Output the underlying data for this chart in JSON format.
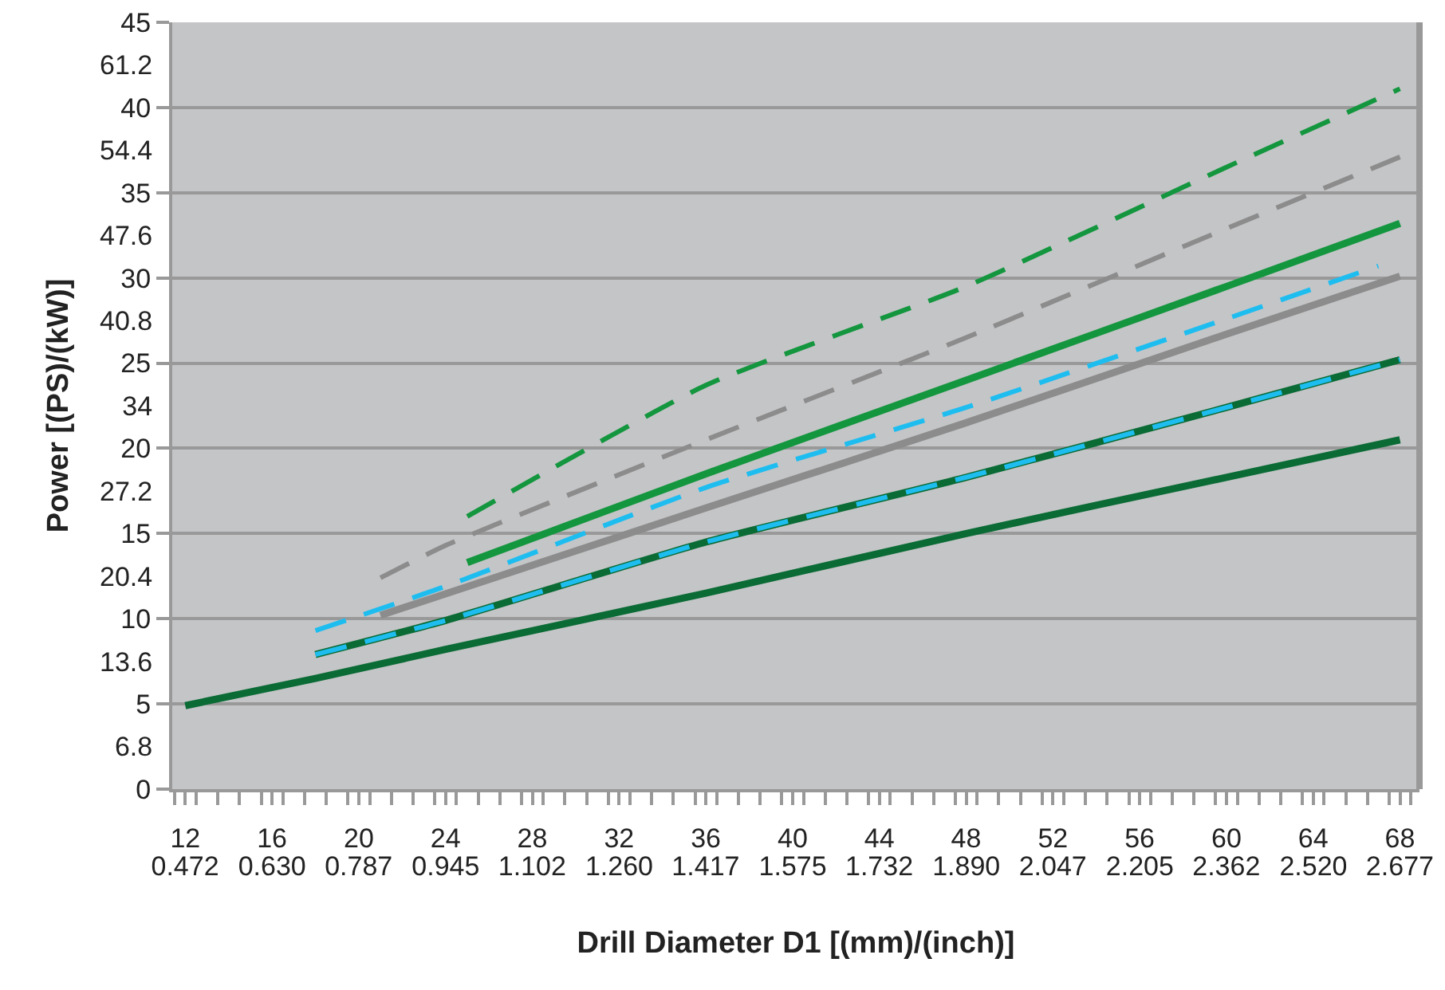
{
  "chart_data": {
    "type": "line",
    "xlabel": "Drill Diameter D1 [(mm)/(inch)]",
    "y2label": "Power [(PS)/(kW)]",
    "xlim": [
      11.4,
      68.9
    ],
    "xticks": [
      12,
      16,
      20,
      24,
      28,
      32,
      36,
      40,
      44,
      48,
      52,
      56,
      60,
      64,
      68,
      {
        "value": 11.5,
        "label": null
      },
      {
        "value": 12.5,
        "label": null
      },
      {
        "value": 13.5,
        "label": null
      },
      {
        "value": 14.5,
        "label": null
      },
      {
        "value": 15.5,
        "label": null
      },
      {
        "value": 16.5,
        "label": null
      },
      {
        "value": 17.5,
        "label": null
      },
      {
        "value": 18.5,
        "label": null
      },
      {
        "value": 19.5,
        "label": null
      },
      {
        "value": 20.5,
        "label": null
      },
      {
        "value": 21.5,
        "label": null
      },
      {
        "value": 22.5,
        "label": null
      },
      {
        "value": 23.5,
        "label": null
      },
      {
        "value": 24.5,
        "label": null
      },
      {
        "value": 25.5,
        "label": null
      },
      {
        "value": 26.5,
        "label": null
      },
      {
        "value": 27.5,
        "label": null
      },
      {
        "value": 28.5,
        "label": null
      },
      {
        "value": 29.5,
        "label": null
      },
      {
        "value": 30.5,
        "label": null
      },
      {
        "value": 31.5,
        "label": null
      },
      {
        "value": 32.5,
        "label": null
      },
      {
        "value": 33.5,
        "label": null
      },
      {
        "value": 34.5,
        "label": null
      },
      {
        "value": 35.5,
        "label": null
      },
      {
        "value": 36.5,
        "label": null
      },
      {
        "value": 37.5,
        "label": null
      },
      {
        "value": 38.5,
        "label": null
      },
      {
        "value": 39.5,
        "label": null
      },
      {
        "value": 40.5,
        "label": null
      },
      {
        "value": 41.5,
        "label": null
      },
      {
        "value": 42.5,
        "label": null
      },
      {
        "value": 43.5,
        "label": null
      },
      {
        "value": 44.5,
        "label": null
      },
      {
        "value": 45.5,
        "label": null
      },
      {
        "value": 46.5,
        "label": null
      },
      {
        "value": 47.5,
        "label": null
      },
      {
        "value": 48.5,
        "label": null
      },
      {
        "value": 49.5,
        "label": null
      },
      {
        "value": 50.5,
        "label": null
      },
      {
        "value": 51.5,
        "label": null
      },
      {
        "value": 52.5,
        "label": null
      },
      {
        "value": 53.5,
        "label": null
      },
      {
        "value": 54.5,
        "label": null
      },
      {
        "value": 55.5,
        "label": null
      },
      {
        "value": 56.5,
        "label": null
      },
      {
        "value": 57.5,
        "label": null
      },
      {
        "value": 58.5,
        "label": null
      },
      {
        "value": 59.5,
        "label": null
      },
      {
        "value": 60.5,
        "label": null
      },
      {
        "value": 61.5,
        "label": null
      },
      {
        "value": 62.5,
        "label": null
      },
      {
        "value": 63.5,
        "label": null
      },
      {
        "value": 64.5,
        "label": null
      },
      {
        "value": 65.5,
        "label": null
      },
      {
        "value": 66.5,
        "label": null
      },
      {
        "value": 67.5,
        "label": null
      },
      {
        "value": 68.5,
        "label": null
      }
    ],
    "x2lim": [
      0.4488,
      2.7126
    ],
    "x2ticks": [
      {
        "value": 0.472,
        "label": "0.472"
      },
      {
        "value": 0.63,
        "label": "0.630"
      },
      0.787,
      0.945,
      1.102,
      {
        "value": 1.26,
        "label": "1.260"
      },
      1.417,
      1.575,
      1.732,
      {
        "value": 1.89,
        "label": "1.890"
      },
      2.047,
      2.205,
      2.362,
      {
        "value": 2.52,
        "label": "2.520"
      },
      2.677
    ],
    "ylim": [
      0,
      45
    ],
    "yticks": [
      0,
      5,
      10,
      15,
      20,
      25,
      30,
      35,
      40,
      45
    ],
    "y2lim": [
      3.4,
      64.6
    ],
    "y2ticks": [
      6.8,
      13.6,
      20.4,
      27.2,
      34,
      40.8,
      47.6,
      54.4,
      61.2
    ],
    "grid": "y",
    "series": [
      {
        "color": "#0a6b35",
        "line_style": "solid",
        "x": [
          12,
          18,
          24,
          36,
          48,
          60,
          68
        ],
        "values": [
          4.9,
          6.5,
          8.2,
          11.5,
          15.0,
          18.3,
          20.5
        ]
      },
      {
        "color": "#0a6b35",
        "line_style": "solid",
        "x": [
          18,
          24,
          36,
          48,
          60,
          68
        ],
        "values": [
          7.9,
          9.9,
          14.5,
          18.3,
          22.4,
          25.2
        ]
      },
      {
        "color": "#1ebdf0",
        "line_style": "dashed",
        "x": [
          18,
          24,
          36,
          48,
          60,
          68
        ],
        "values": [
          7.9,
          9.9,
          14.5,
          18.3,
          22.4,
          25.2
        ]
      },
      {
        "color": "#1ebdf0",
        "line_style": "dashed",
        "x": [
          18,
          24,
          36,
          48,
          60,
          67
        ],
        "values": [
          9.3,
          11.9,
          17.7,
          22.4,
          27.6,
          30.7
        ]
      },
      {
        "color": "#8c8c8c",
        "line_style": "solid",
        "x": [
          21,
          36,
          48,
          60,
          68
        ],
        "values": [
          10.2,
          16.5,
          21.5,
          26.7,
          30.1
        ]
      },
      {
        "color": "#14963f",
        "line_style": "solid",
        "x": [
          25,
          36,
          48,
          60,
          68
        ],
        "values": [
          13.3,
          18.5,
          24.0,
          29.5,
          33.2
        ]
      },
      {
        "color": "#8c8c8c",
        "line_style": "dashed",
        "x": [
          21,
          24,
          36,
          48,
          60,
          68
        ],
        "values": [
          12.4,
          14.3,
          20.5,
          26.5,
          32.9,
          37.1
        ]
      },
      {
        "color": "#14963f",
        "line_style": "dashed",
        "x": [
          25,
          36,
          48,
          60,
          68
        ],
        "values": [
          16.0,
          23.7,
          29.5,
          36.5,
          41.1
        ]
      }
    ]
  }
}
